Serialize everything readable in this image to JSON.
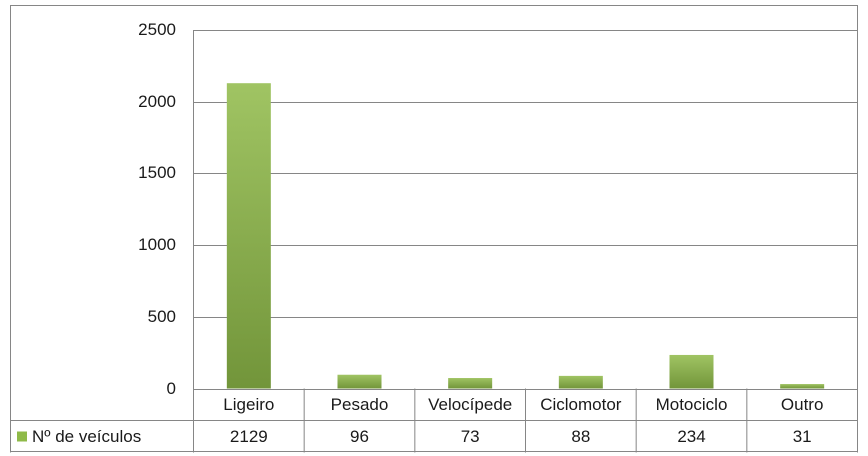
{
  "chart_data": {
    "type": "bar",
    "categories": [
      "Ligeiro",
      "Pesado",
      "Velocípede",
      "Ciclomotor",
      "Motociclo",
      "Outro"
    ],
    "series": [
      {
        "name": "Nº de veículos",
        "color": "#8fba48",
        "values": [
          2129,
          96,
          73,
          88,
          234,
          31
        ]
      }
    ],
    "ylim": [
      0,
      2500
    ],
    "yticks": [
      0,
      500,
      1000,
      1500,
      2000,
      2500
    ],
    "grid": true,
    "data_table": true
  }
}
